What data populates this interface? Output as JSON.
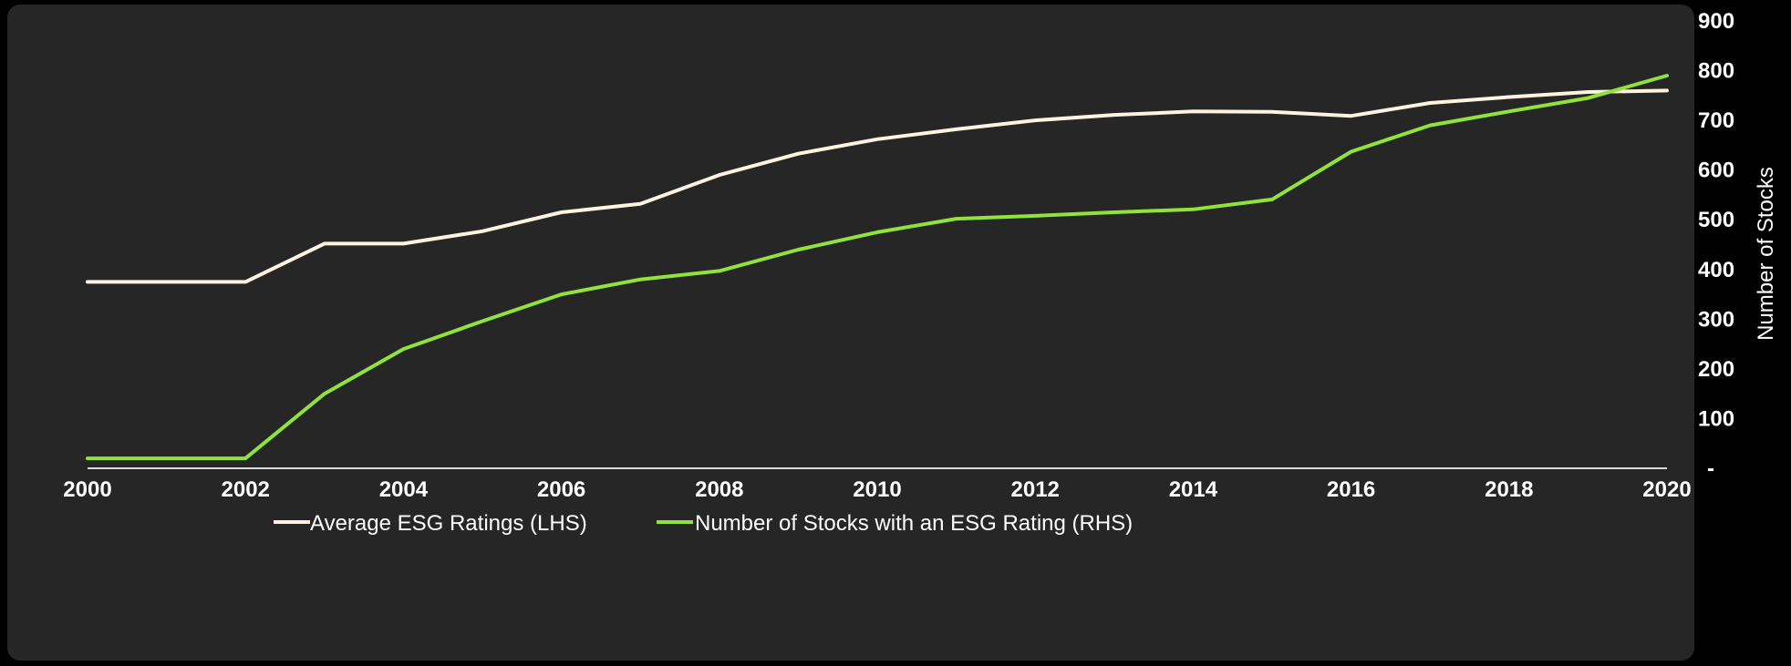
{
  "chart_data": {
    "type": "line",
    "x": [
      2000,
      2001,
      2002,
      2003,
      2004,
      2005,
      2006,
      2007,
      2008,
      2009,
      2010,
      2011,
      2012,
      2013,
      2014,
      2015,
      2016,
      2017,
      2018,
      2019,
      2020
    ],
    "x_tick_labels": [
      "2000",
      "2002",
      "2004",
      "2006",
      "2008",
      "2010",
      "2012",
      "2014",
      "2016",
      "2018",
      "2020"
    ],
    "xlim": [
      2000,
      2020
    ],
    "y_right_ticks": [
      "-",
      "100",
      "200",
      "300",
      "400",
      "500",
      "600",
      "700",
      "800",
      "900"
    ],
    "ylim_right": [
      0,
      900
    ],
    "ylabel_right": "Number of Stocks",
    "series": [
      {
        "name": "Average ESG Ratings (LHS)",
        "color": "#fff3df",
        "axis": "left",
        "values": [
          375,
          375,
          375,
          452,
          452,
          477,
          515,
          532,
          590,
          633,
          662,
          682,
          700,
          711,
          718,
          717,
          709,
          735,
          747,
          757,
          760
        ]
      },
      {
        "name": "Number of Stocks with an ESG Rating (RHS)",
        "color": "#8fe33a",
        "axis": "right",
        "values": [
          20,
          20,
          20,
          150,
          240,
          296,
          350,
          380,
          397,
          440,
          475,
          502,
          508,
          515,
          521,
          541,
          637,
          690,
          718,
          745,
          790
        ]
      }
    ],
    "grid": false,
    "legend_position": "bottom-center"
  }
}
